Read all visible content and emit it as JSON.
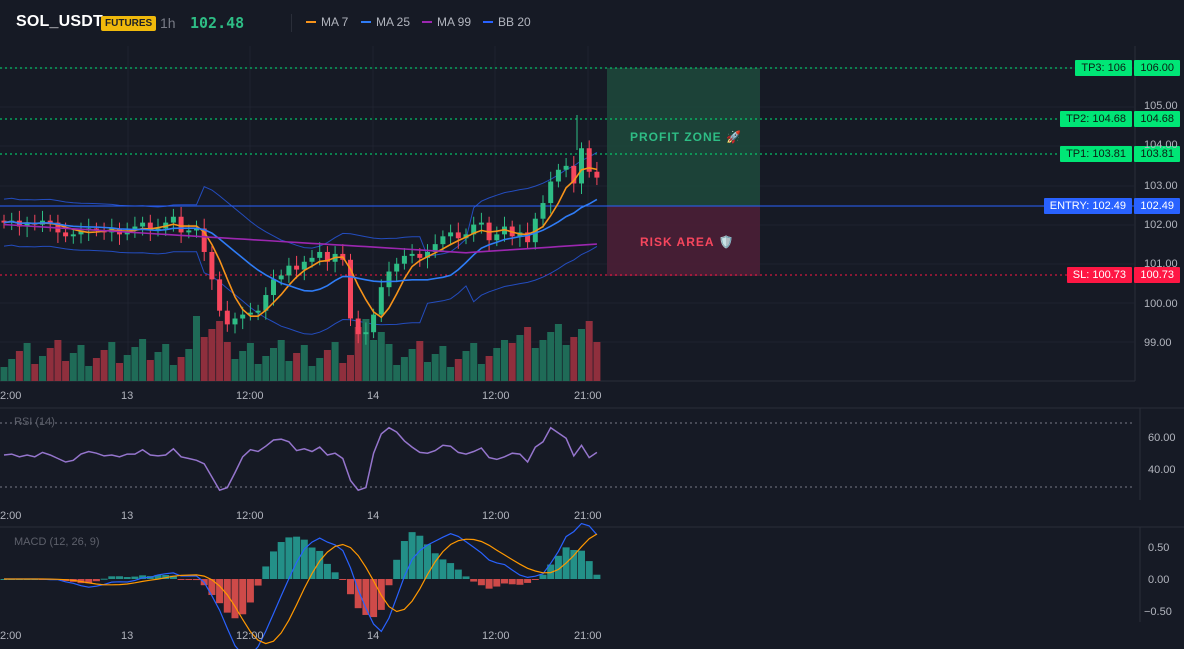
{
  "header": {
    "symbol": "SOL_USDT",
    "badge": "FUTURES",
    "timeframe": "1h",
    "last_price": "102.48",
    "legend": [
      {
        "label": "MA 7",
        "color": "#f7931a"
      },
      {
        "label": "MA 25",
        "color": "#2f7cf6"
      },
      {
        "label": "MA 99",
        "color": "#9c27b0"
      },
      {
        "label": "BB 20",
        "color": "#2962ff"
      }
    ]
  },
  "price_axis": {
    "ticks": [
      "106.00",
      "105.00",
      "104.00",
      "103.00",
      "102.00",
      "101.00",
      "100.00",
      "99.00"
    ]
  },
  "levels": {
    "tp3": {
      "tag": "TP3: 106",
      "value": "106.00",
      "color": "#00e676"
    },
    "tp2": {
      "tag": "TP2: 104.68",
      "value": "104.68",
      "color": "#00e676"
    },
    "tp1": {
      "tag": "TP1: 103.81",
      "value": "103.81",
      "color": "#00e676"
    },
    "entry": {
      "tag": "ENTRY: 102.49",
      "value": "102.49",
      "color": "#2962ff"
    },
    "sl": {
      "tag": "SL: 100.73",
      "value": "100.73",
      "color": "#ff1744"
    }
  },
  "zones": {
    "profit": "PROFIT ZONE 🚀",
    "risk": "RISK AREA 🛡️"
  },
  "time_axis": {
    "labels": [
      "2:00",
      "13",
      "12:00",
      "14",
      "12:00",
      "21:00"
    ]
  },
  "rsi": {
    "label": "RSI (14)",
    "ticks": [
      "60.00",
      "40.00"
    ],
    "color": "#9575cd"
  },
  "macd": {
    "label": "MACD (12, 26, 9)",
    "ticks": [
      "0.50",
      "0.00",
      "−0.50"
    ],
    "macd_color": "#2962ff",
    "signal_color": "#ff9800"
  },
  "colors": {
    "up": "#2ebd85",
    "down": "#f6465d",
    "background": "#161a25"
  }
}
